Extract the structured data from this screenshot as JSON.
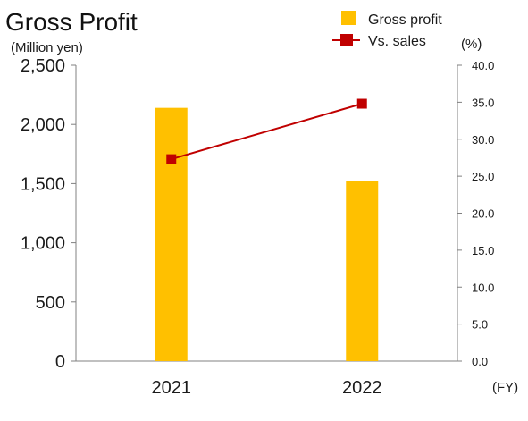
{
  "title": "Gross Profit",
  "chart_data": {
    "type": "bar",
    "title": "Gross Profit",
    "ylabel": "(Million yen)",
    "y2label": "(%)",
    "xlabel": "(FY)",
    "categories": [
      "2021",
      "2022"
    ],
    "ylim": [
      0,
      2500
    ],
    "y2lim": [
      0,
      40
    ],
    "yticks": [
      "0",
      "500",
      "1,000",
      "1,500",
      "2,000",
      "2,500"
    ],
    "y2ticks": [
      "0.0",
      "5.0",
      "10.0",
      "15.0",
      "20.0",
      "25.0",
      "30.0",
      "35.0",
      "40.0"
    ],
    "series": [
      {
        "name": "Gross profit",
        "type": "bar",
        "axis": "left",
        "color": "#FFC000",
        "values": [
          2140,
          1525
        ]
      },
      {
        "name": "Vs. sales",
        "type": "line",
        "axis": "right",
        "color": "#C00000",
        "values": [
          27.3,
          34.8
        ]
      }
    ],
    "legend": "top-right",
    "grid": false
  }
}
